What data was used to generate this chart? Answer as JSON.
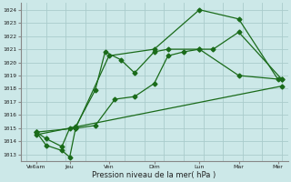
{
  "xlabel": "Pression niveau de la mer( hPa )",
  "bg_color": "#cce8e8",
  "grid_color": "#aacccc",
  "line_color": "#1a6b1a",
  "ylim": [
    1012.5,
    1024.5
  ],
  "xlim": [
    -0.3,
    13.3
  ],
  "yticks": [
    1013,
    1014,
    1015,
    1016,
    1017,
    1018,
    1019,
    1020,
    1021,
    1022,
    1023,
    1024
  ],
  "xtick_labels": [
    "Ve6am",
    "Jeu",
    "Ven",
    "Dim",
    "Lun",
    "Mar",
    "Mer"
  ],
  "xtick_positions": [
    0.5,
    2.2,
    4.2,
    6.5,
    8.8,
    10.8,
    12.8
  ],
  "line_zigzag_x": [
    0.5,
    1.0,
    1.8,
    2.2,
    2.5,
    3.5,
    4.0,
    4.8,
    5.5,
    6.5,
    7.2,
    8.8,
    10.8,
    13.0
  ],
  "line_zigzag_y": [
    1014.7,
    1014.2,
    1013.6,
    1015.0,
    1015.1,
    1017.9,
    1020.8,
    1020.2,
    1019.2,
    1020.8,
    1021.0,
    1021.0,
    1019.0,
    1018.7
  ],
  "line_low_x": [
    0.5,
    1.0,
    1.8,
    2.2,
    2.5,
    3.5,
    4.5,
    5.5,
    6.5,
    7.2,
    8.0,
    8.8,
    9.5,
    10.8,
    13.0
  ],
  "line_low_y": [
    1014.7,
    1013.7,
    1013.3,
    1012.8,
    1015.0,
    1015.2,
    1017.2,
    1017.4,
    1018.4,
    1020.5,
    1020.8,
    1021.0,
    1021.0,
    1022.3,
    1018.7
  ],
  "line_trend_x": [
    0.5,
    13.0
  ],
  "line_trend_y": [
    1014.5,
    1018.2
  ],
  "line_upper_x": [
    0.5,
    2.5,
    4.2,
    6.5,
    8.8,
    10.8,
    12.8
  ],
  "line_upper_y": [
    1014.7,
    1015.0,
    1020.5,
    1021.0,
    1024.0,
    1023.3,
    1018.7
  ]
}
